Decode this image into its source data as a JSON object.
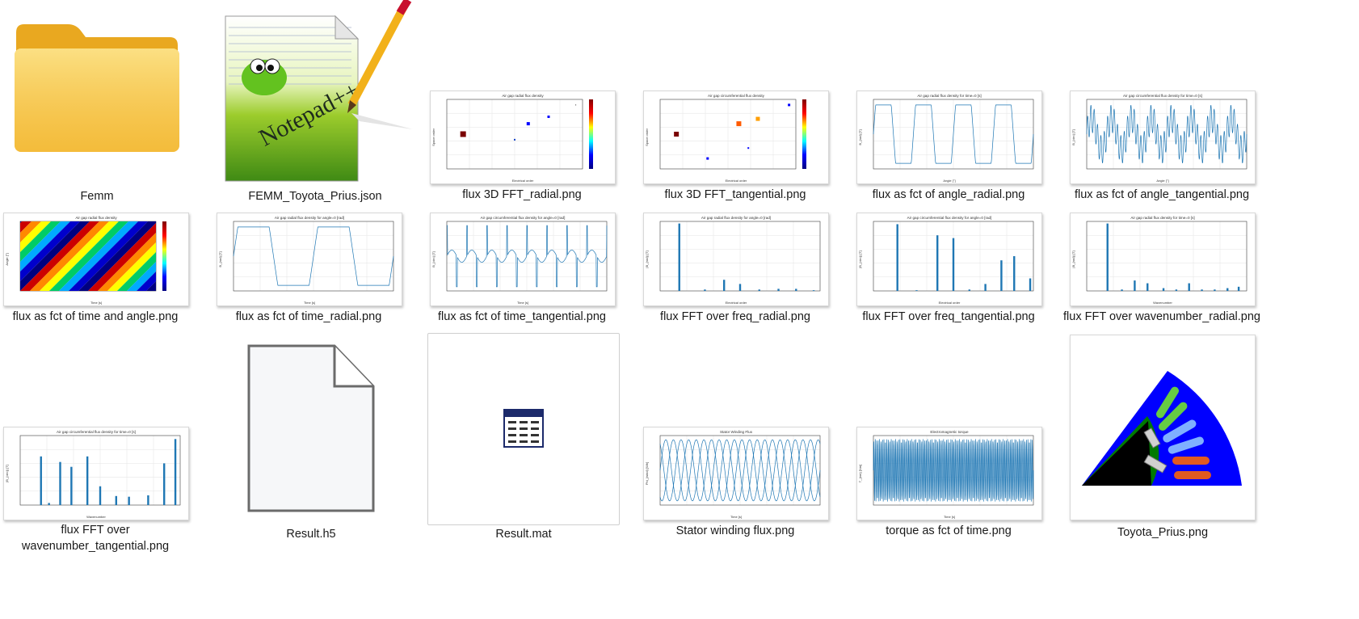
{
  "files": [
    {
      "name": "Femm",
      "icon": "folder-icon"
    },
    {
      "name": "FEMM_Toyota_Prius.json",
      "icon": "notepad-plus-plus-icon",
      "logo_text": "Notepad++"
    },
    {
      "name": "flux 3D FFT_radial.png",
      "icon": "image-thumbnail",
      "plot_title": "Air gap radial flux density",
      "xlabel": "Electrical order",
      "ylabel": "Space order"
    },
    {
      "name": "flux 3D FFT_tangential.png",
      "icon": "image-thumbnail",
      "plot_title": "Air gap circumferential flux density",
      "xlabel": "Electrical order",
      "ylabel": "Space order"
    },
    {
      "name": "flux as fct of angle_radial.png",
      "icon": "image-thumbnail",
      "plot_title": "Air gap radial flux density for time=0 [s]",
      "xlabel": "Angle [°]",
      "ylabel": "B_{rad} [T]"
    },
    {
      "name": "flux as fct of angle_tangential.png",
      "icon": "image-thumbnail",
      "plot_title": "Air gap circumferential flux density for time=0 [s]",
      "xlabel": "Angle [°]",
      "ylabel": "B_{circ} [T]"
    },
    {
      "name": "flux as fct of time and angle.png",
      "icon": "image-thumbnail",
      "plot_title": "Air gap radial flux density",
      "xlabel": "Time [s]",
      "ylabel": "Angle [°]"
    },
    {
      "name": "flux as fct of time_radial.png",
      "icon": "image-thumbnail",
      "plot_title": "Air gap radial flux density for angle=0 [rad]",
      "xlabel": "Time [s]",
      "ylabel": "B_{rad} [T]"
    },
    {
      "name": "flux as fct of time_tangential.png",
      "icon": "image-thumbnail",
      "plot_title": "Air gap circumferential flux density for angle=0 [rad]",
      "xlabel": "Time [s]",
      "ylabel": "B_{circ} [T]"
    },
    {
      "name": "flux FFT over freq_radial.png",
      "icon": "image-thumbnail",
      "plot_title": "Air gap radial flux density for angle=0 [rad]",
      "xlabel": "Electrical order",
      "ylabel": "|B_{rad}| [T]"
    },
    {
      "name": "flux FFT over freq_tangential.png",
      "icon": "image-thumbnail",
      "plot_title": "Air gap circumferential flux density for angle=0 [rad]",
      "xlabel": "Electrical order",
      "ylabel": "|B_{circ}| [T]"
    },
    {
      "name": "flux FFT over wavenumber_radial.png",
      "icon": "image-thumbnail",
      "plot_title": "Air gap radial flux density for time=0 [s]",
      "xlabel": "Wavenumber",
      "ylabel": "|B_{rad}| [T]"
    },
    {
      "name": "flux FFT over wavenumber_tangential.png",
      "icon": "image-thumbnail",
      "plot_title": "Air gap circumferential flux density for time=0 [s]",
      "xlabel": "Wavenumber",
      "ylabel": "|B_{circ}| [T]"
    },
    {
      "name": "Result.h5",
      "icon": "blank-file-icon"
    },
    {
      "name": "Result.mat",
      "icon": "mat-file-icon"
    },
    {
      "name": "Stator winding flux.png",
      "icon": "image-thumbnail",
      "plot_title": "Stator Winding Flux",
      "xlabel": "Time [s]",
      "ylabel": "Phi_{wind} [Wb]"
    },
    {
      "name": "torque as fct of time.png",
      "icon": "image-thumbnail",
      "plot_title": "Electromagnetic torque",
      "xlabel": "Time [s]",
      "ylabel": "T_{em} [Nm]"
    },
    {
      "name": "Toyota_Prius.png",
      "icon": "motor-cross-section-thumbnail"
    }
  ],
  "colors": {
    "folder": "#F7C548",
    "plot_line": "#1f77b4",
    "blue": "#0000ff",
    "green": "#008000",
    "black": "#000000"
  }
}
